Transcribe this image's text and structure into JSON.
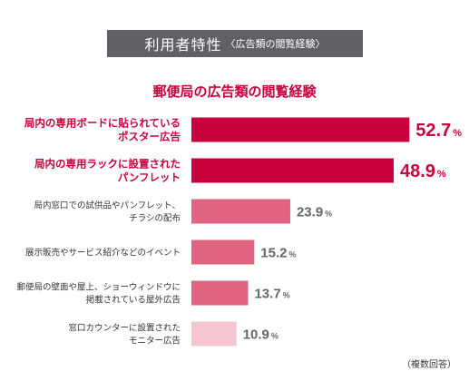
{
  "header": {
    "title": "利用者特性",
    "subtitle": "〈広告類の閲覧経験〉"
  },
  "chart_data": {
    "type": "bar",
    "orientation": "horizontal",
    "title": "郵便局の広告類の閲覧経験",
    "unit": "%",
    "xlim": [
      0,
      60
    ],
    "grid": false,
    "categories": [
      [
        "局内の専用ボードに貼られている",
        "ポスター広告"
      ],
      [
        "局内の専用ラックに設置された",
        "パンフレット"
      ],
      [
        "局内窓口での試供品やパンフレット、",
        "チラシの配布"
      ],
      [
        "展示販売やサービス紹介などのイベント"
      ],
      [
        "郵便局の壁面や屋上、ショーウィンドウに",
        "掲載されている屋外広告"
      ],
      [
        "窓口カウンターに設置された",
        "モニター広告"
      ]
    ],
    "values": [
      52.7,
      48.9,
      23.9,
      15.2,
      13.7,
      10.9
    ],
    "colors": [
      "#c8003c",
      "#c8003c",
      "#e06482",
      "#e06482",
      "#e06482",
      "#f4c4cf"
    ],
    "highlight": [
      true,
      true,
      false,
      false,
      false,
      false
    ],
    "note": "（複数回答）"
  }
}
